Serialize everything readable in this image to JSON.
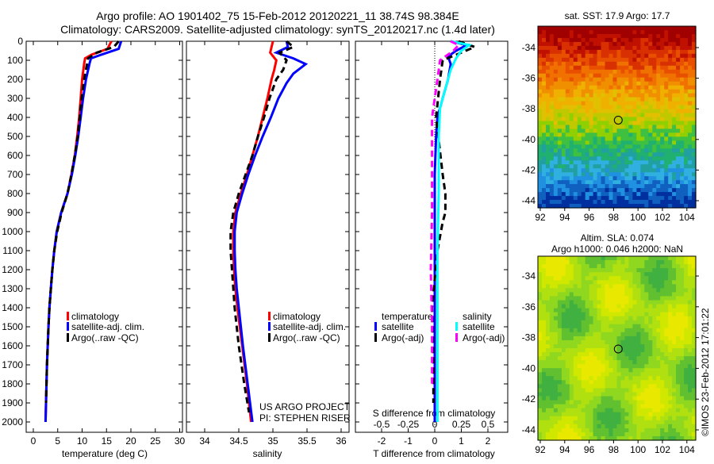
{
  "title_line1": "Argo profile: AO 1901402_75 15-Feb-2012 20120221_11 38.74S 98.384E",
  "title_line2": "Climatology: CARS2009. Satellite-adjusted climatology: synTS_20120217.nc (1.4d later)",
  "credit": "US ARGO PROJECT",
  "pi": "PI: STEPHEN RISER",
  "copyright": "©IMOS 23-Feb-2012 17:01:22",
  "colors": {
    "climatology": "#ff0000",
    "satellite": "#0000ff",
    "argo": "#000000",
    "sal_satellite": "#00ffff",
    "sal_argo": "#ff00ff"
  },
  "chart_data": [
    {
      "type": "line",
      "xlabel": "temperature (deg C)",
      "ylabel": "depth",
      "ylim": [
        2050,
        0
      ],
      "xlim": [
        -1.5,
        30.5
      ],
      "xticks": [
        "0",
        "5",
        "10",
        "15",
        "20",
        "25",
        "30"
      ],
      "yticks": [
        "0",
        "100",
        "200",
        "300",
        "400",
        "500",
        "600",
        "700",
        "800",
        "900",
        "1000",
        "1100",
        "1200",
        "1300",
        "1400",
        "1500",
        "1600",
        "1700",
        "1800",
        "1900",
        "2000"
      ],
      "legend": [
        "climatology",
        "satellite-adj. clim.",
        "Argo(..raw -QC)"
      ],
      "series": [
        {
          "name": "climatology",
          "depth": [
            0,
            40,
            70,
            90,
            120,
            200,
            300,
            400,
            500,
            600,
            700,
            800,
            900,
            1000,
            1100,
            1200,
            1300,
            1400,
            1500,
            1700,
            2000
          ],
          "values": [
            16,
            15.2,
            12,
            10.6,
            10.4,
            10,
            9.7,
            9.4,
            9,
            8.5,
            7.8,
            7,
            5.7,
            4.8,
            4.3,
            3.9,
            3.6,
            3.3,
            3.1,
            2.8,
            2.5
          ]
        },
        {
          "name": "satellite-adj. clim.",
          "depth": [
            0,
            40,
            70,
            90,
            120,
            200,
            300,
            400,
            500,
            600,
            700,
            800,
            900,
            1000,
            1100,
            1200,
            1300,
            1400,
            1500,
            1700,
            2000
          ],
          "values": [
            18,
            17.5,
            14,
            11.8,
            11.5,
            10.8,
            10.2,
            9.7,
            9.2,
            8.6,
            7.9,
            7,
            5.7,
            4.8,
            4.3,
            3.9,
            3.6,
            3.3,
            3.1,
            2.8,
            2.5
          ]
        },
        {
          "name": "Argo(..raw -QC)",
          "depth": [
            0,
            30,
            60,
            90,
            120,
            200,
            300,
            400,
            500,
            600,
            700,
            800,
            900,
            1000,
            1100,
            1200,
            1300,
            1400,
            1500,
            1700,
            1900
          ],
          "values": [
            17.5,
            16.5,
            13,
            11.2,
            11,
            10.4,
            9.9,
            9.5,
            9.1,
            8.5,
            7.8,
            7,
            5.8,
            4.9,
            4.3,
            3.9,
            3.6,
            3.3,
            3.1,
            2.8,
            2.6
          ]
        }
      ]
    },
    {
      "type": "line",
      "xlabel": "salinity",
      "ylim": [
        2050,
        0
      ],
      "xlim": [
        33.8,
        36.1
      ],
      "xticks": [
        "34",
        "34.5",
        "35",
        "35.5",
        "36"
      ],
      "legend": [
        "climatology",
        "satellite-adj. clim.",
        "Argo(..raw -QC)"
      ],
      "series": [
        {
          "name": "climatology",
          "depth": [
            0,
            30,
            60,
            100,
            150,
            200,
            300,
            400,
            500,
            600,
            700,
            800,
            900,
            1000,
            1100,
            1200,
            1300,
            1400,
            1600,
            1800,
            2000
          ],
          "values": [
            35.0,
            34.98,
            34.96,
            35.05,
            35.02,
            34.98,
            34.92,
            34.85,
            34.78,
            34.7,
            34.62,
            34.53,
            34.45,
            34.42,
            34.42,
            34.43,
            34.45,
            34.48,
            34.55,
            34.62,
            34.68
          ]
        },
        {
          "name": "satellite-adj. clim.",
          "depth": [
            0,
            30,
            60,
            90,
            120,
            170,
            220,
            300,
            400,
            500,
            600,
            700,
            800,
            900,
            1000,
            1100,
            1200,
            1300,
            1400,
            1600,
            1800,
            2000
          ],
          "values": [
            35.2,
            35.22,
            35.05,
            35.3,
            35.48,
            35.3,
            35.2,
            35.08,
            34.97,
            34.85,
            34.74,
            34.64,
            34.55,
            34.47,
            34.44,
            34.44,
            34.45,
            34.47,
            34.5,
            34.56,
            34.63,
            34.7
          ]
        },
        {
          "name": "Argo(..raw -QC)",
          "depth": [
            0,
            30,
            60,
            100,
            150,
            200,
            300,
            400,
            500,
            600,
            700,
            800,
            900,
            1000,
            1100,
            1200,
            1300,
            1400,
            1600,
            1800,
            1950
          ],
          "values": [
            35.2,
            35.3,
            35.1,
            35.2,
            35.15,
            35.05,
            34.95,
            34.87,
            34.78,
            34.7,
            34.6,
            34.5,
            34.42,
            34.38,
            34.38,
            34.4,
            34.42,
            34.44,
            34.5,
            34.58,
            34.65
          ]
        }
      ]
    },
    {
      "type": "line",
      "xlabel": "T difference from climatology",
      "x2label": "S difference from climatology",
      "ylim": [
        2050,
        0
      ],
      "xlim": [
        -2.95,
        2.75
      ],
      "xticks": [
        "-2",
        "-1",
        "0",
        "1",
        "2"
      ],
      "x2ticks": [
        "-0.5",
        "-0.25",
        "0",
        "0.25",
        "0.5"
      ],
      "legend_temperature": {
        "title": "temperature",
        "items": [
          "satellite",
          "Argo(-adj)"
        ]
      },
      "legend_salinity": {
        "title": "salinity",
        "items": [
          "satellite",
          "Argo(-adj)"
        ]
      },
      "series": [
        {
          "name": "temperature satellite",
          "depth": [
            0,
            20,
            50,
            80,
            120,
            200,
            300,
            400,
            500,
            700,
            900,
            1100,
            1300,
            1500,
            1700,
            2000
          ],
          "values": [
            0.6,
            1.2,
            0.8,
            0.5,
            0.6,
            0.5,
            0.3,
            0.1,
            0.05,
            0,
            0,
            0,
            0,
            0,
            0,
            0
          ]
        },
        {
          "name": "temperature Argo(-adj)",
          "depth": [
            0,
            30,
            60,
            100,
            200,
            400,
            700,
            800,
            900,
            950,
            1100,
            1400,
            1700,
            1900
          ],
          "values": [
            0.9,
            1.5,
            1.0,
            0.3,
            0.2,
            0.05,
            0.3,
            0.4,
            0.4,
            0.3,
            0.1,
            -0.1,
            -0.05,
            -0.05
          ]
        },
        {
          "name": "salinity satellite",
          "depth": [
            0,
            20,
            50,
            90,
            150,
            250,
            350,
            500,
            800,
            1100,
            1500,
            2000
          ],
          "values": [
            0.6,
            1.3,
            1.0,
            0.8,
            0.6,
            0.4,
            0.2,
            0.15,
            0.15,
            0.1,
            0.1,
            0.1
          ]
        },
        {
          "name": "salinity Argo(-adj)",
          "depth": [
            0,
            20,
            50,
            100,
            200,
            400,
            600,
            900,
            1200,
            1500,
            1800
          ],
          "values": [
            0.6,
            0.9,
            0.7,
            0.2,
            0.1,
            -0.1,
            -0.1,
            -0.1,
            -0.15,
            -0.1,
            -0.1
          ]
        }
      ]
    },
    {
      "type": "heatmap",
      "title": "sat. SST: 17.9 Argo: 17.7",
      "xticks": [
        "92",
        "94",
        "96",
        "98",
        "100",
        "102",
        "104"
      ],
      "yticks": [
        "-34",
        "-36",
        "-38",
        "-40",
        "-42",
        "-44"
      ],
      "marker": {
        "lon": 98.384,
        "lat": -38.74
      }
    },
    {
      "type": "heatmap",
      "title": "Altim. SLA: 0.074",
      "subtitle": "Argo h1000: 0.046 h2000: NaN",
      "xticks": [
        "92",
        "94",
        "96",
        "98",
        "100",
        "102",
        "104"
      ],
      "yticks": [
        "-34",
        "-36",
        "-38",
        "-40",
        "-42",
        "-44"
      ],
      "marker": {
        "lon": 98.384,
        "lat": -38.74
      }
    }
  ]
}
